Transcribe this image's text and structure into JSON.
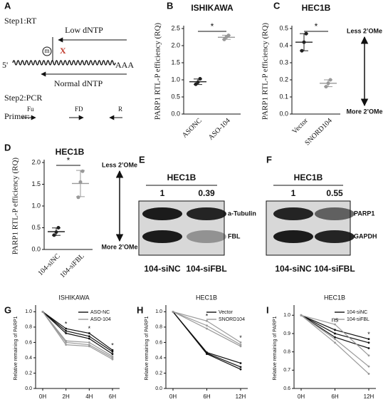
{
  "panel_a": {
    "letter": "A",
    "step1": "Step1:RT",
    "modification": "m",
    "mismatch": "X",
    "low_dntp": "Low dNTP",
    "five_prime": "5'",
    "poly_a": "AAA",
    "normal_dntp": "Normal dNTP",
    "step2": "Step2:PCR",
    "primer": "Primer:",
    "fu": "Fu",
    "fd": "FD",
    "r": "R"
  },
  "blots": [
    {
      "letter": "E",
      "title": "HEC1B",
      "ratios": [
        1,
        0.39
      ],
      "bands": [
        "a-Tubulin",
        "FBL"
      ],
      "lanes": [
        "104-siNC",
        "104-siFBL"
      ]
    },
    {
      "letter": "F",
      "title": "HEC1B",
      "ratios": [
        1,
        0.55
      ],
      "bands": [
        "PARP1",
        "GAPDH"
      ],
      "lanes": [
        "104-siNC",
        "104-siFBL"
      ]
    }
  ],
  "chart_data": [
    {
      "type": "dot",
      "letter": "B",
      "title": "ISHIKAWA",
      "ylabel": "PARP1 RTL-P efficiency (RQ)",
      "categories": [
        "ASONC",
        "ASO-104"
      ],
      "colors": [
        "#222222",
        "#999999"
      ],
      "values": [
        [
          0.87,
          0.93,
          1.03
        ],
        [
          2.18,
          2.25,
          2.3
        ]
      ],
      "ylim": [
        0,
        2.5
      ],
      "yticks": [
        {
          "value": 0,
          "label": "0.0"
        },
        0.5,
        {
          "value": 1,
          "label": "1.0"
        },
        1.5,
        {
          "value": 2,
          "label": "2.0"
        },
        2.5
      ],
      "significance": "*"
    },
    {
      "type": "dot",
      "letter": "C",
      "title": "HEC1B",
      "ylabel": "PARP1 RTL-P efficiency (RQ)",
      "categories": [
        "Vector",
        "SNORD104"
      ],
      "colors": [
        "#222222",
        "#999999"
      ],
      "values": [
        [
          0.37,
          0.42,
          0.47
        ],
        [
          0.16,
          0.18,
          0.2
        ]
      ],
      "ylim": [
        0,
        0.5
      ],
      "yticks": [
        {
          "value": 0,
          "label": "0.0"
        },
        0.1,
        0.2,
        0.3,
        0.4,
        0.5
      ],
      "significance": "*",
      "arrow_labels": [
        "Less 2’OMe",
        "More 2’OMe"
      ]
    },
    {
      "type": "dot",
      "letter": "D",
      "title": "HEC1B",
      "ylabel": "PARP1 RTL-P efficiency (RQ)",
      "categories": [
        "104-siNC",
        "104-siFBL"
      ],
      "colors": [
        "#222222",
        "#999999"
      ],
      "values": [
        [
          0.33,
          0.4,
          0.5
        ],
        [
          1.2,
          1.55,
          1.8
        ]
      ],
      "ylim": [
        0,
        2
      ],
      "yticks": [
        {
          "value": 0,
          "label": "0.0"
        },
        0.5,
        {
          "value": 1,
          "label": "1.0"
        },
        1.5,
        {
          "value": 2,
          "label": "2.0"
        }
      ],
      "significance": "*",
      "arrow_labels": [
        "Less 2’OMe",
        "More 2’OMe"
      ]
    },
    {
      "type": "line",
      "letter": "G",
      "title": "ISHIKAWA",
      "ylabel": "Relative remaining of PARP1",
      "categories": [
        "0H",
        "2H",
        "4H",
        "6H"
      ],
      "ylim": [
        0,
        1.05
      ],
      "yticks": [
        {
          "value": 0,
          "label": "0.0"
        },
        0.2,
        0.4,
        0.6,
        0.8,
        {
          "value": 1,
          "label": "1.0"
        }
      ],
      "series": [
        {
          "name": "ASO-NC",
          "color": "#111111",
          "replicates": [
            [
              1,
              0.78,
              0.72,
              0.5
            ],
            [
              1,
              0.75,
              0.68,
              0.48
            ],
            [
              1,
              0.72,
              0.65,
              0.45
            ]
          ]
        },
        {
          "name": "ASO-104",
          "color": "#9a9a9a",
          "replicates": [
            [
              1,
              0.62,
              0.6,
              0.42
            ],
            [
              1,
              0.6,
              0.57,
              0.4
            ],
            [
              1,
              0.57,
              0.55,
              0.38
            ]
          ]
        }
      ],
      "annotations": [
        {
          "text": "*",
          "x": "2H"
        },
        {
          "text": "*",
          "x": "4H"
        },
        {
          "text": "*",
          "x": "6H"
        }
      ]
    },
    {
      "type": "line",
      "letter": "H",
      "title": "HEC1B",
      "ylabel": "Relative remaining of PARP1",
      "categories": [
        "0H",
        "6H",
        "12H"
      ],
      "ylim": [
        0,
        1.05
      ],
      "yticks": [
        {
          "value": 0,
          "label": "0.0"
        },
        0.2,
        0.4,
        0.6,
        0.8,
        {
          "value": 1,
          "label": "1.0"
        }
      ],
      "series": [
        {
          "name": "Vector",
          "color": "#111111",
          "replicates": [
            [
              1,
              0.47,
              0.33
            ],
            [
              1,
              0.46,
              0.28
            ],
            [
              1,
              0.45,
              0.25
            ]
          ]
        },
        {
          "name": "SNORD104",
          "color": "#9a9a9a",
          "replicates": [
            [
              1,
              0.88,
              0.6
            ],
            [
              1,
              0.82,
              0.57
            ],
            [
              1,
              0.78,
              0.55
            ]
          ]
        }
      ],
      "annotations": [
        {
          "text": "*",
          "x": "6H"
        },
        {
          "text": "*",
          "x": "12H"
        }
      ]
    },
    {
      "type": "line",
      "letter": "I",
      "title": "HEC1B",
      "ylabel": "Relative remaining of PARP1",
      "categories": [
        "0H",
        "6H",
        "12H"
      ],
      "ylim": [
        0.6,
        1.04
      ],
      "yticks": [
        0.6,
        0.7,
        0.8,
        0.9,
        {
          "value": 1,
          "label": "1.0"
        }
      ],
      "series": [
        {
          "name": "104-siNC",
          "color": "#111111",
          "replicates": [
            [
              1,
              0.92,
              0.87
            ],
            [
              1,
              0.9,
              0.85
            ],
            [
              1,
              0.88,
              0.82
            ]
          ]
        },
        {
          "name": "104-siFBL",
          "color": "#9a9a9a",
          "replicates": [
            [
              1,
              0.95,
              0.78
            ],
            [
              1,
              0.87,
              0.72
            ],
            [
              1,
              0.85,
              0.68
            ]
          ]
        }
      ],
      "annotations": [
        {
          "text": "ns",
          "x": "6H"
        },
        {
          "text": "*",
          "x": "12H"
        }
      ]
    }
  ]
}
